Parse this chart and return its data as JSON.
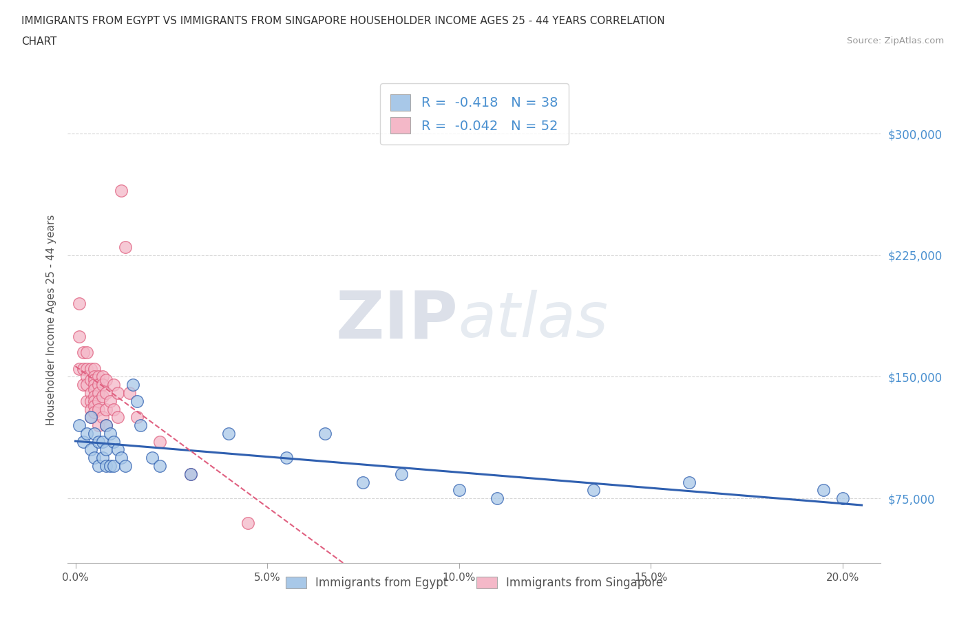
{
  "title_line1": "IMMIGRANTS FROM EGYPT VS IMMIGRANTS FROM SINGAPORE HOUSEHOLDER INCOME AGES 25 - 44 YEARS CORRELATION",
  "title_line2": "CHART",
  "source": "Source: ZipAtlas.com",
  "ylabel": "Householder Income Ages 25 - 44 years",
  "legend_egypt": "Immigrants from Egypt",
  "legend_singapore": "Immigrants from Singapore",
  "r_egypt": -0.418,
  "n_egypt": 38,
  "r_singapore": -0.042,
  "n_singapore": 52,
  "color_egypt": "#a8c8e8",
  "color_singapore": "#f4b8c8",
  "line_color_egypt": "#3060b0",
  "line_color_singapore": "#e06080",
  "background_color": "#ffffff",
  "grid_color": "#d8d8d8",
  "xlim": [
    -0.002,
    0.21
  ],
  "ylim": [
    35000,
    335000
  ],
  "yticks": [
    75000,
    150000,
    225000,
    300000
  ],
  "xticks": [
    0.0,
    0.05,
    0.1,
    0.15,
    0.2
  ],
  "xtick_labels": [
    "0.0%",
    "5.0%",
    "10.0%",
    "15.0%",
    "20.0%"
  ],
  "ytick_labels": [
    "$75,000",
    "$150,000",
    "$225,000",
    "$300,000"
  ],
  "watermark_zip": "ZIP",
  "watermark_atlas": "atlas",
  "egypt_x": [
    0.001,
    0.002,
    0.003,
    0.004,
    0.004,
    0.005,
    0.005,
    0.006,
    0.006,
    0.007,
    0.007,
    0.008,
    0.008,
    0.008,
    0.009,
    0.009,
    0.01,
    0.01,
    0.011,
    0.012,
    0.013,
    0.015,
    0.016,
    0.017,
    0.02,
    0.022,
    0.03,
    0.04,
    0.055,
    0.065,
    0.075,
    0.085,
    0.1,
    0.11,
    0.135,
    0.16,
    0.195,
    0.2
  ],
  "egypt_y": [
    120000,
    110000,
    115000,
    125000,
    105000,
    115000,
    100000,
    110000,
    95000,
    110000,
    100000,
    120000,
    105000,
    95000,
    115000,
    95000,
    110000,
    95000,
    105000,
    100000,
    95000,
    145000,
    135000,
    120000,
    100000,
    95000,
    90000,
    115000,
    100000,
    115000,
    85000,
    90000,
    80000,
    75000,
    80000,
    85000,
    80000,
    75000
  ],
  "singapore_x": [
    0.001,
    0.001,
    0.001,
    0.002,
    0.002,
    0.002,
    0.003,
    0.003,
    0.003,
    0.003,
    0.003,
    0.004,
    0.004,
    0.004,
    0.004,
    0.004,
    0.004,
    0.005,
    0.005,
    0.005,
    0.005,
    0.005,
    0.005,
    0.005,
    0.005,
    0.005,
    0.006,
    0.006,
    0.006,
    0.006,
    0.006,
    0.006,
    0.007,
    0.007,
    0.007,
    0.007,
    0.008,
    0.008,
    0.008,
    0.008,
    0.009,
    0.01,
    0.01,
    0.011,
    0.011,
    0.012,
    0.013,
    0.014,
    0.016,
    0.022,
    0.03,
    0.045
  ],
  "singapore_y": [
    195000,
    175000,
    155000,
    165000,
    155000,
    145000,
    165000,
    155000,
    150000,
    145000,
    135000,
    155000,
    148000,
    140000,
    135000,
    130000,
    125000,
    155000,
    150000,
    148000,
    145000,
    142000,
    138000,
    135000,
    132000,
    128000,
    150000,
    145000,
    140000,
    135000,
    130000,
    120000,
    150000,
    145000,
    138000,
    125000,
    148000,
    140000,
    130000,
    120000,
    135000,
    145000,
    130000,
    140000,
    125000,
    265000,
    230000,
    140000,
    125000,
    110000,
    90000,
    60000
  ]
}
